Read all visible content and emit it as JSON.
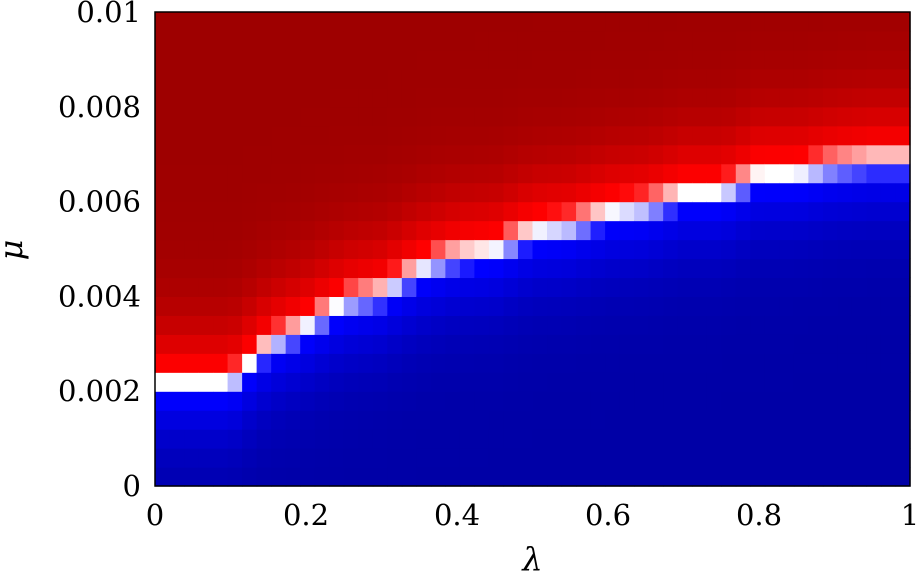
{
  "chart_data": {
    "type": "heatmap",
    "title": "",
    "xlabel": "λ",
    "ylabel": "μ",
    "xlim": [
      0,
      1
    ],
    "ylim": [
      0,
      0.01
    ],
    "x_ticks": [
      "0",
      "0.2",
      "0.4",
      "0.6",
      "0.8",
      "1"
    ],
    "x_tick_values": [
      0,
      0.2,
      0.4,
      0.6,
      0.8,
      1
    ],
    "y_ticks": [
      "0",
      "0.002",
      "0.004",
      "0.006",
      "0.008",
      "0.01"
    ],
    "y_tick_values": [
      0,
      0.002,
      0.004,
      0.006,
      0.008,
      0.01
    ],
    "colormap": {
      "low": "#0000a6",
      "mid": "#ffffff",
      "high": "#9e0000"
    },
    "grid": false,
    "legend": "none",
    "boundary": {
      "description": "transition between the blue (low) and red (high) regions",
      "lambda": [
        0,
        0.05,
        0.1,
        0.15,
        0.2,
        0.25,
        0.3,
        0.35,
        0.4,
        0.45,
        0.5,
        0.55,
        0.6,
        0.65,
        0.7,
        0.75,
        0.8,
        0.85,
        0.9,
        0.95,
        1.0
      ],
      "mu": [
        0.0022,
        0.0022,
        0.0022,
        0.003,
        0.0034,
        0.0039,
        0.0041,
        0.0046,
        0.0049,
        0.005,
        0.0054,
        0.0055,
        0.0058,
        0.0059,
        0.0062,
        0.0062,
        0.0066,
        0.0066,
        0.0068,
        0.0069,
        0.0069
      ]
    }
  }
}
